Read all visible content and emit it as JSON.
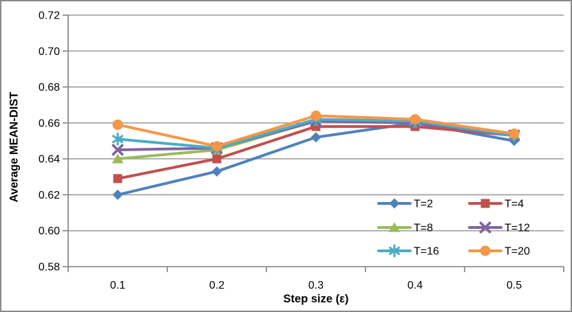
{
  "chart_data": {
    "type": "line",
    "xlabel": "Step size (ε)",
    "ylabel": "Average MEAN-DIST",
    "x_categories": [
      "0.1",
      "0.2",
      "0.3",
      "0.4",
      "0.5"
    ],
    "y_ticks": [
      "0.72",
      "0.70",
      "0.68",
      "0.66",
      "0.64",
      "0.62",
      "0.60",
      "0.58"
    ],
    "ylim": [
      0.58,
      0.72
    ],
    "grid": "horizontal",
    "legend_position": "inside-bottom-right",
    "legend_columns": 2,
    "series": [
      {
        "name": "T=2",
        "color": "#4F81BD",
        "marker": "diamond",
        "values": [
          0.62,
          0.633,
          0.652,
          0.66,
          0.65
        ]
      },
      {
        "name": "T=4",
        "color": "#C0504D",
        "marker": "square",
        "values": [
          0.629,
          0.64,
          0.658,
          0.658,
          0.653
        ]
      },
      {
        "name": "T=8",
        "color": "#9BBB59",
        "marker": "triangle",
        "values": [
          0.64,
          0.645,
          0.661,
          0.66,
          0.653
        ]
      },
      {
        "name": "T=12",
        "color": "#8064A2",
        "marker": "x",
        "values": [
          0.645,
          0.646,
          0.661,
          0.66,
          0.653
        ]
      },
      {
        "name": "T=16",
        "color": "#4BACC6",
        "marker": "asterisk",
        "values": [
          0.651,
          0.646,
          0.662,
          0.661,
          0.653
        ]
      },
      {
        "name": "T=20",
        "color": "#F79646",
        "marker": "circle",
        "values": [
          0.659,
          0.647,
          0.664,
          0.662,
          0.654
        ]
      }
    ],
    "colors": {
      "axis": "#7F7F7F",
      "grid": "#A6A6A6",
      "text": "#000000",
      "background": "#FFFFFF",
      "border": "#8A8A8A"
    }
  }
}
